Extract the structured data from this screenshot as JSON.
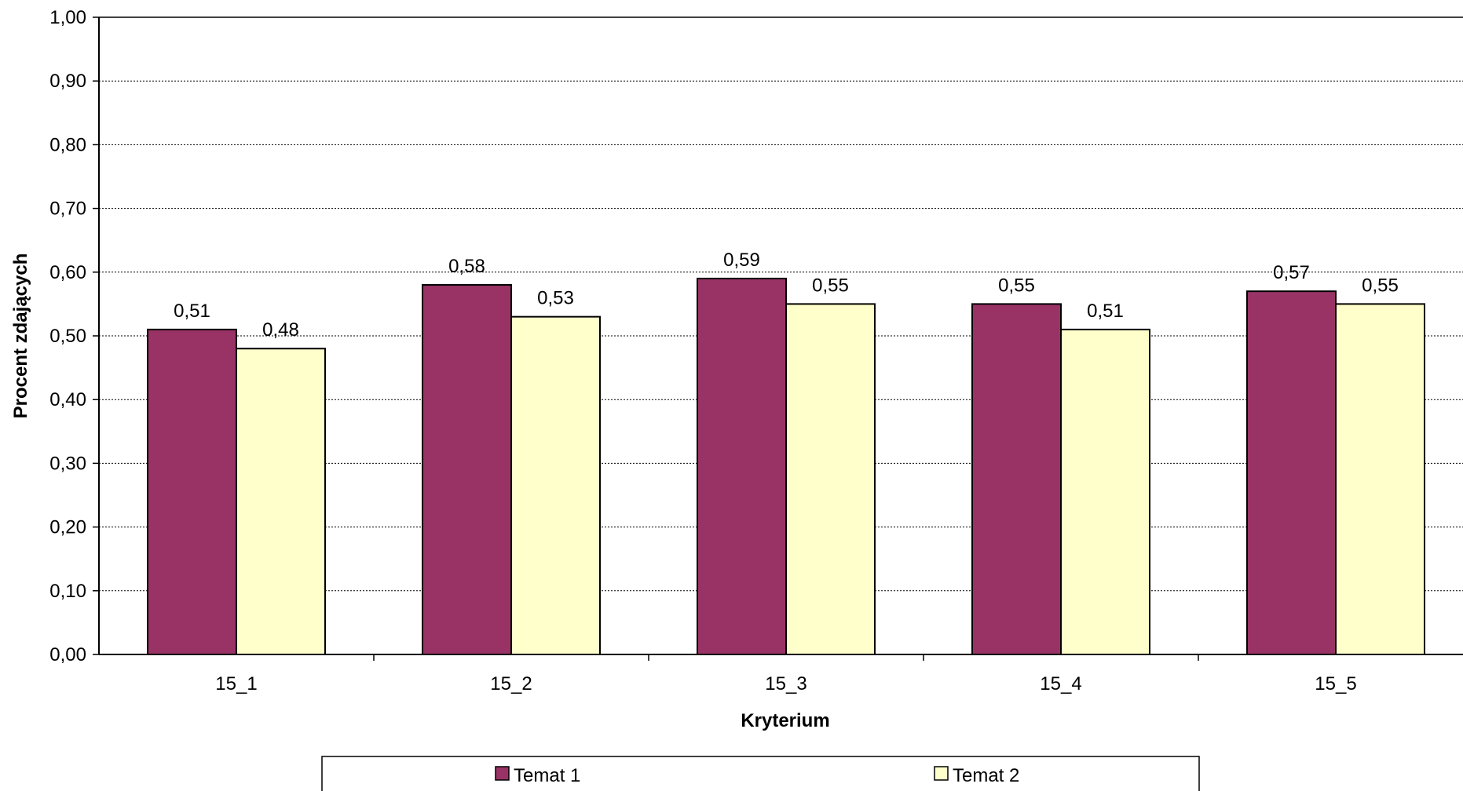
{
  "chart_data": {
    "type": "bar",
    "categories": [
      "15_1",
      "15_2",
      "15_3",
      "15_4",
      "15_5"
    ],
    "series": [
      {
        "name": "Temat 1",
        "values": [
          0.51,
          0.58,
          0.59,
          0.55,
          0.57
        ],
        "labels": [
          "0,51",
          "0,58",
          "0,59",
          "0,55",
          "0,57"
        ],
        "color": "#993366"
      },
      {
        "name": "Temat 2",
        "values": [
          0.48,
          0.53,
          0.55,
          0.51,
          0.55
        ],
        "labels": [
          "0,48",
          "0,53",
          "0,55",
          "0,51",
          "0,55"
        ],
        "color": "#FFFFCC"
      }
    ],
    "xlabel": "Kryterium",
    "ylabel": "Procent zdających",
    "ylim": [
      0,
      1
    ],
    "yticks": [
      0,
      0.1,
      0.2,
      0.3,
      0.4,
      0.5,
      0.6,
      0.7,
      0.8,
      0.9,
      1.0
    ],
    "ytick_labels": [
      "0,00",
      "0,10",
      "0,20",
      "0,30",
      "0,40",
      "0,50",
      "0,60",
      "0,70",
      "0,80",
      "0,90",
      "1,00"
    ],
    "grid": "horizontal dotted",
    "legend_position": "bottom"
  }
}
